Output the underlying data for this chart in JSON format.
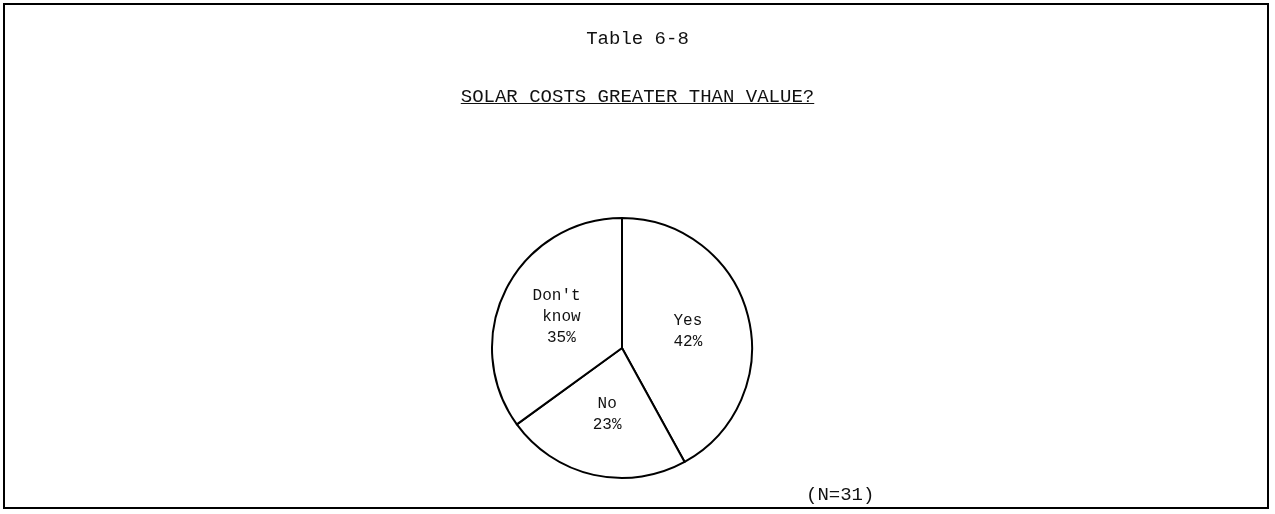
{
  "chart_data": {
    "type": "pie",
    "title": "Table 6-8",
    "subtitle": "SOLAR COSTS GREATER THAN VALUE?",
    "categories": [
      "Yes",
      "No",
      "Don't know"
    ],
    "values": [
      42,
      23,
      35
    ],
    "colors": [
      "#ffffff",
      "#ffffff",
      "#ffffff"
    ],
    "value_labels": [
      "42%",
      "23%",
      "35%"
    ],
    "annotations": [
      "(N=31)"
    ],
    "legend": false
  }
}
